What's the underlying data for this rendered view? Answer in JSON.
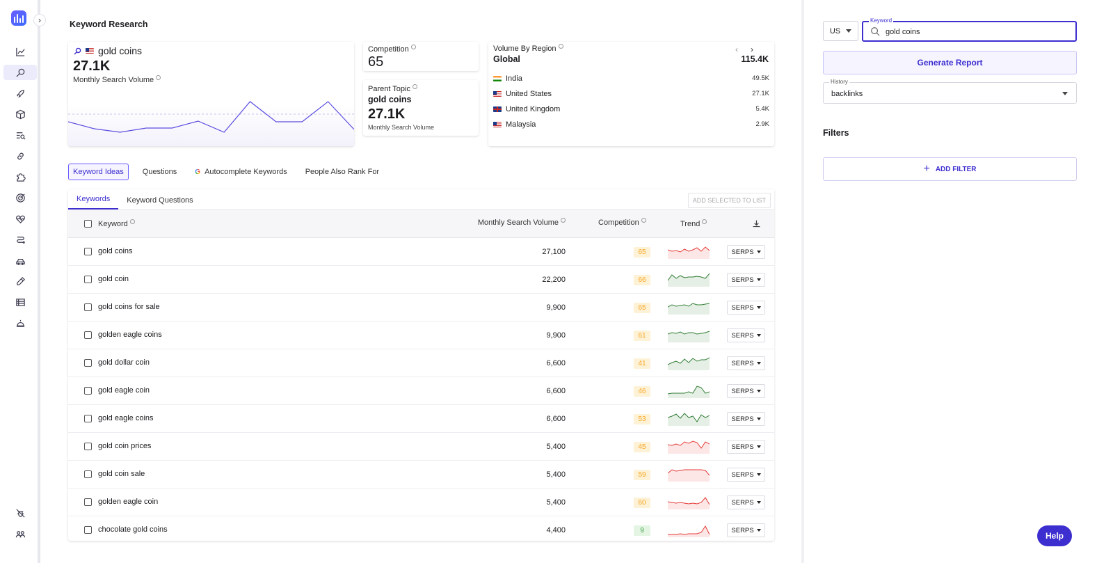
{
  "page": {
    "title": "Keyword Research"
  },
  "summary": {
    "keyword": "gold coins",
    "volume": "27.1K",
    "volume_label": "Monthly Search Volume",
    "trend": [
      45,
      55,
      60,
      54,
      54,
      44,
      60,
      16,
      45,
      45,
      16,
      56
    ]
  },
  "competition": {
    "title": "Competition",
    "value": "65"
  },
  "parent_topic": {
    "title": "Parent Topic",
    "name": "gold coins",
    "volume": "27.1K",
    "volume_label": "Monthly Search Volume"
  },
  "region": {
    "title": "Volume By Region",
    "scope": "Global",
    "total": "115.4K",
    "rows": [
      {
        "name": "India",
        "value": "49.5K",
        "flag": "india"
      },
      {
        "name": "United States",
        "value": "27.1K",
        "flag": "us"
      },
      {
        "name": "United Kingdom",
        "value": "5.4K",
        "flag": "uk"
      },
      {
        "name": "Malaysia",
        "value": "2.9K",
        "flag": "malaysia"
      }
    ]
  },
  "subtabs": [
    {
      "label": "Keyword Ideas",
      "active": true
    },
    {
      "label": "Questions"
    },
    {
      "label": "Autocomplete Keywords",
      "icon": "google-icon"
    },
    {
      "label": "People Also Rank For"
    }
  ],
  "table": {
    "tabs": [
      "Keywords",
      "Keyword Questions"
    ],
    "add_to_list": "ADD SELECTED TO LIST",
    "headers": {
      "keyword": "Keyword",
      "volume": "Monthly Search Volume",
      "competition": "Competition",
      "trend": "Trend"
    },
    "serps_label": "SERPS",
    "rows": [
      {
        "keyword": "gold coins",
        "volume": "27,100",
        "competition": "65",
        "color": "#f9a825",
        "trend_color": "#e53935",
        "trend": [
          7,
          9,
          8,
          10,
          6,
          9,
          7,
          4,
          9,
          3,
          8
        ]
      },
      {
        "keyword": "gold coin",
        "volume": "22,200",
        "competition": "66",
        "color": "#f9a825",
        "trend_color": "#2e7d32",
        "trend": [
          11,
          3,
          8,
          4,
          7,
          6,
          6,
          5,
          6,
          8,
          1
        ]
      },
      {
        "keyword": "gold coins for sale",
        "volume": "9,900",
        "competition": "65",
        "color": "#f9a825",
        "trend_color": "#2e7d32",
        "trend": [
          9,
          6,
          8,
          7,
          6,
          8,
          4,
          6,
          6,
          5,
          4
        ]
      },
      {
        "keyword": "golden eagle coins",
        "volume": "9,900",
        "competition": "61",
        "color": "#f9a825",
        "trend_color": "#2e7d32",
        "trend": [
          8,
          6,
          7,
          5,
          8,
          6,
          6,
          8,
          7,
          6,
          4
        ]
      },
      {
        "keyword": "gold dollar coin",
        "volume": "6,600",
        "competition": "41",
        "color": "#f9a825",
        "trend_color": "#2e7d32",
        "trend": [
          12,
          9,
          7,
          10,
          4,
          9,
          3,
          7,
          5,
          5,
          2
        ]
      },
      {
        "keyword": "gold eagle coin",
        "volume": "6,600",
        "competition": "46",
        "color": "#f9a825",
        "trend_color": "#2e7d32",
        "trend": [
          14,
          13,
          13,
          13,
          13,
          11,
          13,
          3,
          5,
          13,
          11
        ]
      },
      {
        "keyword": "gold eagle coins",
        "volume": "6,600",
        "competition": "53",
        "color": "#f9a825",
        "trend_color": "#2e7d32",
        "trend": [
          8,
          6,
          3,
          9,
          2,
          8,
          6,
          14,
          4,
          8,
          5
        ]
      },
      {
        "keyword": "gold coin prices",
        "volume": "5,400",
        "competition": "45",
        "color": "#f9a825",
        "trend_color": "#e53935",
        "trend": [
          7,
          8,
          6,
          8,
          3,
          5,
          2,
          4,
          12,
          3,
          6
        ]
      },
      {
        "keyword": "gold coin sale",
        "volume": "5,400",
        "competition": "59",
        "color": "#f9a825",
        "trend_color": "#e53935",
        "trend": [
          8,
          3,
          5,
          4,
          3,
          3,
          3,
          3,
          3,
          4,
          11
        ]
      },
      {
        "keyword": "golden eagle coin",
        "volume": "5,400",
        "competition": "60",
        "color": "#f9a825",
        "trend_color": "#e53935",
        "trend": [
          9,
          10,
          11,
          10,
          11,
          12,
          11,
          12,
          10,
          3,
          13
        ]
      },
      {
        "keyword": "chocolate gold coins",
        "volume": "4,400",
        "competition": "9",
        "color": "#43a047",
        "trend_color": "#e53935",
        "trend": [
          16,
          16,
          16,
          15,
          16,
          15,
          15,
          15,
          13,
          4,
          16
        ]
      }
    ]
  },
  "right_panel": {
    "country": "US",
    "keyword_legend": "Keyword",
    "keyword_value": "gold coins",
    "generate_label": "Generate Report",
    "history_legend": "History",
    "history_value": "backlinks",
    "filters_title": "Filters",
    "add_filter": "ADD FILTER",
    "help": "Help"
  }
}
